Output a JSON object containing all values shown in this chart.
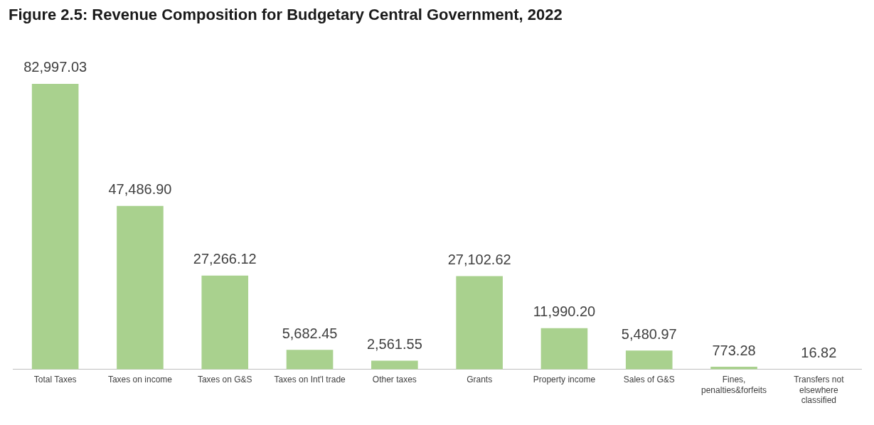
{
  "chart_data": {
    "type": "bar",
    "title": "Figure 2.5: Revenue Composition for Budgetary Central Government, 2022",
    "categories": [
      "Total Taxes",
      "Taxes on income",
      "Taxes on G&S",
      "Taxes on Int'l trade",
      "Other taxes",
      "Grants",
      "Property income",
      "Sales of G&S",
      "Fines, penalties&forfeits",
      "Transfers not elsewhere classified"
    ],
    "values": [
      82997.03,
      47486.9,
      27266.12,
      5682.45,
      2561.55,
      27102.62,
      11990.2,
      5480.97,
      773.28,
      16.82
    ],
    "value_labels": [
      "82,997.03",
      "47,486.90",
      "27,266.12",
      "5,682.45",
      "2,561.55",
      "27,102.62",
      "11,990.20",
      "5,480.97",
      "773.28",
      "16.82"
    ],
    "color": "#a9d18e",
    "tick_labels": "x",
    "grid": false,
    "legend": false
  }
}
